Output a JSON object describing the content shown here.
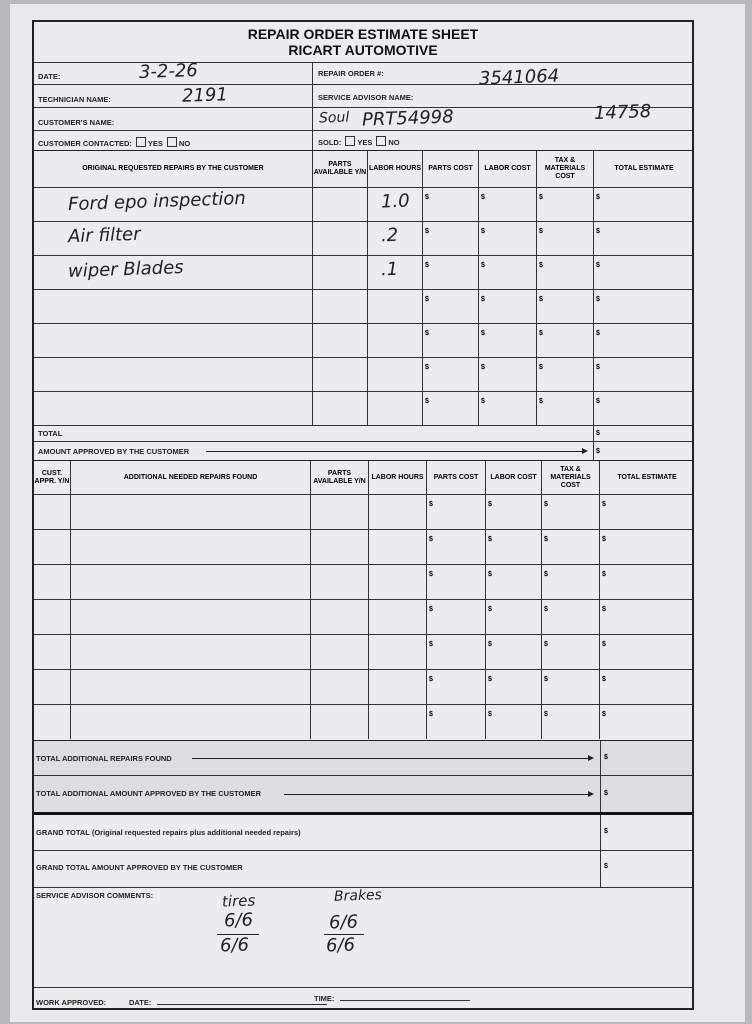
{
  "header": {
    "title": "REPAIR ORDER ESTIMATE SHEET",
    "subtitle": "RICART AUTOMOTIVE"
  },
  "info": {
    "date_label": "DATE:",
    "date_value": "3-2-26",
    "repair_order_label": "REPAIR ORDER #:",
    "repair_order_value": "3541064",
    "technician_label": "TECHNICIAN NAME:",
    "technician_value": "2191",
    "advisor_label": "SERVICE ADVISOR NAME:",
    "customer_label": "CUSTOMER'S NAME:",
    "vehicle_value": "Soul",
    "stock_value": "PRT54998",
    "extra_value": "14758",
    "contacted_label": "CUSTOMER CONTACTED:",
    "yes": "YES",
    "no": "NO",
    "sold_label": "SOLD:"
  },
  "table1": {
    "headers": [
      "ORIGINAL REQUESTED REPAIRS BY THE CUSTOMER",
      "PARTS AVAILABLE Y/N",
      "LABOR HOURS",
      "PARTS COST",
      "LABOR COST",
      "TAX & MATERIALS COST",
      "TOTAL ESTIMATE"
    ],
    "rows": [
      {
        "desc": "Ford epo inspection",
        "hours": "1.0"
      },
      {
        "desc": "Air filter",
        "hours": ".2"
      },
      {
        "desc": "wiper Blades",
        "hours": ".1"
      },
      {
        "desc": "",
        "hours": ""
      },
      {
        "desc": "",
        "hours": ""
      },
      {
        "desc": "",
        "hours": ""
      },
      {
        "desc": "",
        "hours": ""
      }
    ],
    "currency": "$",
    "total_label": "TOTAL",
    "approved_label": "AMOUNT APPROVED BY THE CUSTOMER"
  },
  "table2": {
    "headers": [
      "CUST. APPR. Y/N",
      "ADDITIONAL NEEDED REPAIRS FOUND",
      "PARTS AVAILABLE Y/N",
      "LABOR HOURS",
      "PARTS COST",
      "LABOR COST",
      "TAX & MATERIALS COST",
      "TOTAL ESTIMATE"
    ],
    "row_count": 7,
    "total_label": "TOTAL ADDITIONAL REPAIRS FOUND",
    "approved_label": "TOTAL ADDITIONAL AMOUNT APPROVED BY THE CUSTOMER"
  },
  "grand": {
    "total_label": "GRAND TOTAL (Original requested repairs plus additional needed repairs)",
    "approved_label": "GRAND TOTAL AMOUNT APPROVED BY THE CUSTOMER"
  },
  "comments": {
    "label": "SERVICE ADVISOR COMMENTS:",
    "tires_label": "tires",
    "tires_value_top": "6/6",
    "tires_value_bottom": "6/6",
    "brakes_label": "Brakes",
    "brakes_value_top": "6/6",
    "brakes_value_bottom": "6/6"
  },
  "footer": {
    "work_approved": "WORK APPROVED:",
    "date": "DATE:",
    "time": "TIME:"
  }
}
